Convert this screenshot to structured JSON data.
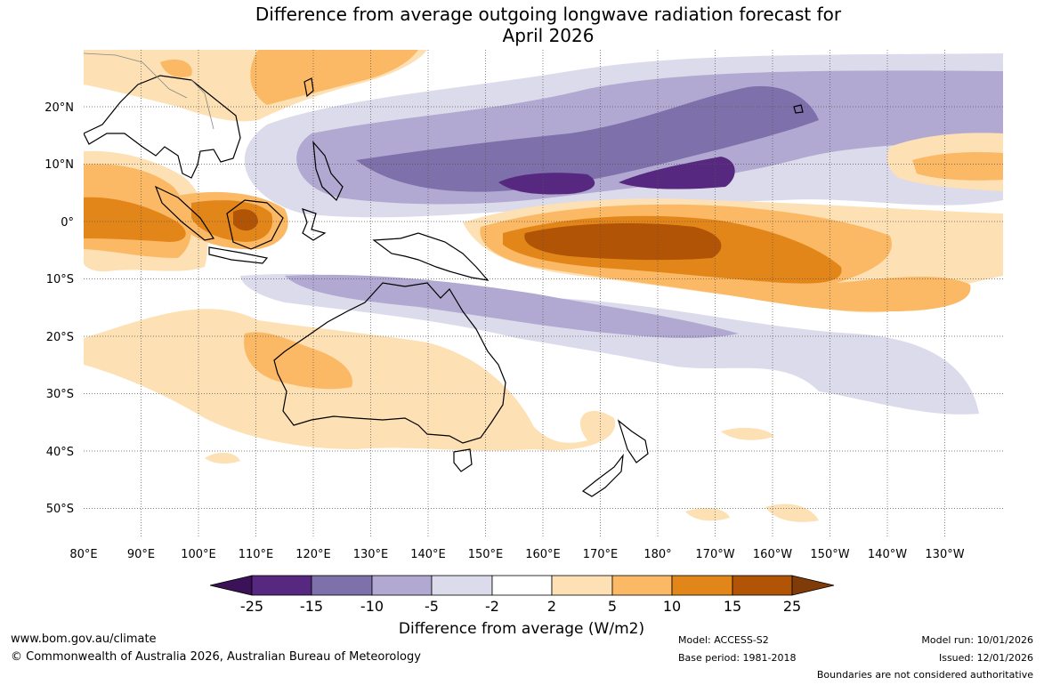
{
  "title": {
    "line1": "Difference from average outgoing longwave radiation forecast for",
    "line2": "April 2026"
  },
  "map": {
    "lon_labels": [
      "80°E",
      "90°E",
      "100°E",
      "110°E",
      "120°E",
      "130°E",
      "140°E",
      "150°E",
      "160°E",
      "170°E",
      "180°",
      "170°W",
      "160°W",
      "150°W",
      "140°W",
      "130°W"
    ],
    "lat_labels": [
      "20°N",
      "10°N",
      "0°",
      "10°S",
      "20°S",
      "30°S",
      "40°S",
      "50°S"
    ]
  },
  "colorbar": {
    "ticks": [
      "-25",
      "-15",
      "-10",
      "-5",
      "-2",
      "2",
      "5",
      "10",
      "15",
      "25"
    ],
    "colors": [
      "#3b1257",
      "#57287f",
      "#7d70ab",
      "#b1a9d1",
      "#dcdbec",
      "#ffffff",
      "#fde0b3",
      "#fbb965",
      "#e3861a",
      "#b15406",
      "#7f3b08"
    ],
    "label": "Difference from average (W/m2)"
  },
  "footer": {
    "website": "www.bom.gov.au/climate",
    "copyright": "© Commonwealth of Australia 2026, Australian Bureau of Meteorology",
    "model": "Model: ACCESS-S2",
    "base_period": "Base period: 1981-2018",
    "model_run": "Model run: 10/01/2026",
    "issued": "Issued: 12/01/2026",
    "boundaries_note": "Boundaries are not considered authoritative"
  }
}
